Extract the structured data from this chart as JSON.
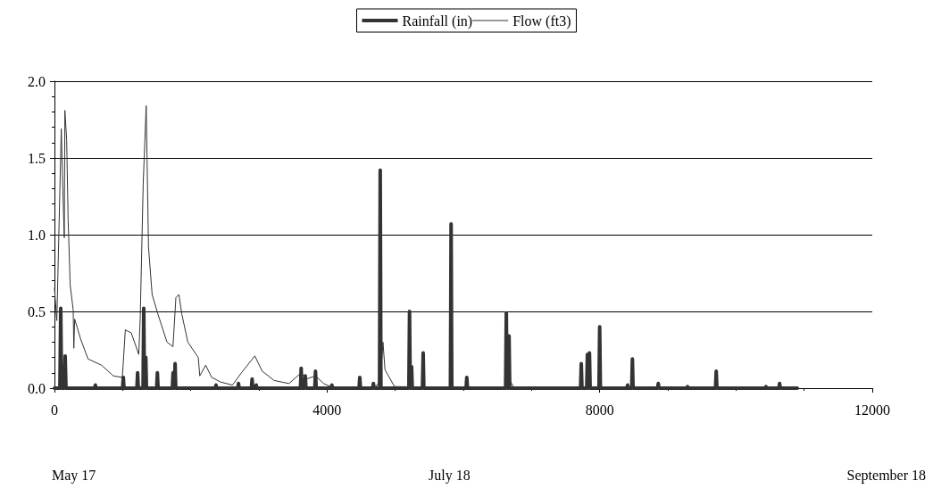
{
  "chart_data": {
    "type": "line",
    "legend": "top",
    "grid": "y",
    "marker": "none",
    "line_style": "solid",
    "xlim": [
      0,
      12000
    ],
    "xticks": [
      0,
      4000,
      8000,
      12000
    ],
    "ylim": [
      0,
      2.0
    ],
    "yticks": [
      {
        "value": 0,
        "label": "0.0"
      },
      {
        "value": 0.5,
        "label": "0.5"
      },
      {
        "value": 1.0,
        "label": "1.0"
      },
      {
        "value": 1.5,
        "label": "1.5"
      },
      {
        "value": 2.0,
        "label": "2.0"
      }
    ],
    "annotations": [
      "May 17",
      "July 18",
      "September 18"
    ],
    "series": [
      {
        "name": "Rainfall (in)",
        "color": "#333333",
        "x": [
          0,
          80,
          92,
          104,
          145,
          157,
          169,
          590,
          600,
          610,
          1000,
          1010,
          1020,
          1210,
          1220,
          1230,
          1300,
          1310,
          1320,
          1330,
          1340,
          1350,
          1500,
          1510,
          1520,
          1730,
          1740,
          1750,
          1760,
          1770,
          1780,
          2360,
          2370,
          2380,
          2690,
          2700,
          2710,
          2890,
          2900,
          2910,
          2950,
          2960,
          2970,
          3610,
          3620,
          3630,
          3670,
          3680,
          3690,
          3820,
          3830,
          3840,
          4060,
          4070,
          4080,
          4470,
          4480,
          4490,
          4670,
          4680,
          4690,
          4770,
          4780,
          4790,
          5200,
          5210,
          5220,
          5230,
          5240,
          5250,
          5400,
          5410,
          5420,
          6040,
          6050,
          6060,
          5810,
          5820,
          5830,
          6620,
          6630,
          6640,
          6660,
          6670,
          6680,
          7720,
          7730,
          7740,
          7810,
          7820,
          7830,
          7840,
          7850,
          7860,
          7990,
          8000,
          8010,
          8400,
          8410,
          8420,
          8470,
          8480,
          8490,
          8850,
          8860,
          8870,
          9280,
          9290,
          9300,
          9700,
          9710,
          9720,
          10430,
          10440,
          10450,
          10630,
          10640,
          10650,
          10900
        ],
        "values": [
          0,
          0,
          0.52,
          0,
          0,
          0.21,
          0,
          0,
          0.02,
          0,
          0,
          0.07,
          0,
          0,
          0.1,
          0,
          0,
          0.52,
          0,
          0,
          0.2,
          0,
          0,
          0.1,
          0,
          0,
          0.1,
          0,
          0,
          0.16,
          0,
          0,
          0.02,
          0,
          0,
          0.03,
          0,
          0,
          0.06,
          0,
          0,
          0.02,
          0,
          0,
          0.13,
          0,
          0,
          0.08,
          0,
          0,
          0.11,
          0,
          0,
          0.02,
          0,
          0,
          0.07,
          0,
          0,
          0.03,
          0,
          0,
          1.42,
          0,
          0,
          0.5,
          0,
          0,
          0.14,
          0,
          0,
          0.23,
          0,
          0,
          0.07,
          0,
          0,
          1.07,
          0,
          0,
          0.49,
          0,
          0,
          0.34,
          0,
          0,
          0.16,
          0,
          0,
          0.22,
          0,
          0,
          0.23,
          0,
          0,
          0.4,
          0,
          0,
          0.02,
          0,
          0,
          0.19,
          0,
          0,
          0.03,
          0,
          0,
          0.01,
          0,
          0,
          0.11,
          0,
          0,
          0.01,
          0,
          0,
          0.03,
          0,
          0
        ]
      },
      {
        "name": "Flow (ft3)",
        "color": "#333333",
        "x": [
          0,
          35,
          100,
          122,
          144,
          153,
          179,
          201,
          231,
          275,
          284,
          297,
          384,
          493,
          690,
          865,
          996,
          1040,
          1127,
          1237,
          1258,
          1302,
          1346,
          1380,
          1433,
          1520,
          1651,
          1739,
          1782,
          1826,
          1870,
          1957,
          2110,
          2132,
          2219,
          2307,
          2438,
          2612,
          2743,
          2940,
          3049,
          3224,
          3442,
          3620,
          3700,
          3830,
          3950,
          4100,
          4700,
          4780,
          4820,
          4850,
          4990,
          6600,
          6680,
          6750,
          10900
        ],
        "values": [
          0.65,
          0.44,
          1.69,
          1.31,
          0.98,
          1.81,
          1.62,
          1.09,
          0.67,
          0.51,
          0.26,
          0.45,
          0.32,
          0.19,
          0.15,
          0.08,
          0.07,
          0.38,
          0.36,
          0.22,
          0.45,
          1.33,
          1.84,
          0.92,
          0.61,
          0.48,
          0.3,
          0.27,
          0.59,
          0.61,
          0.48,
          0.3,
          0.2,
          0.08,
          0.15,
          0.07,
          0.04,
          0.02,
          0.1,
          0.21,
          0.11,
          0.05,
          0.03,
          0.1,
          0.06,
          0.08,
          0.03,
          0,
          0,
          0.05,
          0.3,
          0.12,
          0.01,
          0,
          0.05,
          0,
          0
        ]
      }
    ]
  }
}
